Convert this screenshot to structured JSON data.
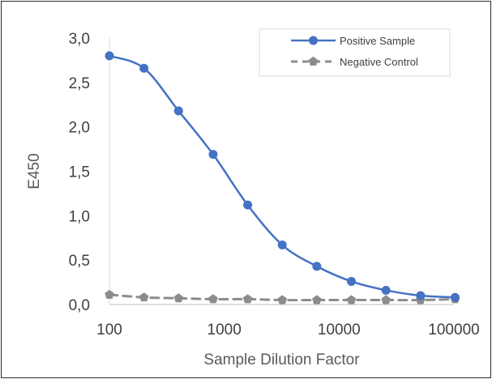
{
  "chart_data": {
    "type": "line",
    "title": "",
    "xlabel": "Sample Dilution Factor",
    "ylabel": "E450",
    "x_scale": "log",
    "xlim": [
      100,
      100000
    ],
    "ylim": [
      0,
      3.0
    ],
    "x_ticks": [
      100,
      1000,
      10000,
      100000
    ],
    "x_tick_labels": [
      "100",
      "1000",
      "10000",
      "100000"
    ],
    "y_ticks": [
      0,
      0.5,
      1.0,
      1.5,
      2.0,
      2.5,
      3.0
    ],
    "y_tick_labels": [
      "0,0",
      "0,5",
      "1,0",
      "1,5",
      "2,0",
      "2,5",
      "3,0"
    ],
    "grid": false,
    "legend_position": "top-right",
    "x": [
      100,
      200,
      400,
      800,
      1600,
      3200,
      6400,
      12800,
      25600,
      51200,
      102400
    ],
    "series": [
      {
        "name": "Positive Sample",
        "color": "#4472c4",
        "line_style": "solid",
        "marker": "circle",
        "values": [
          2.8,
          2.66,
          2.18,
          1.69,
          1.12,
          0.67,
          0.43,
          0.26,
          0.16,
          0.1,
          0.08
        ]
      },
      {
        "name": "Negative Control",
        "color": "#8c8c8c",
        "line_style": "dashed",
        "marker": "pentagon",
        "values": [
          0.11,
          0.08,
          0.07,
          0.06,
          0.06,
          0.05,
          0.05,
          0.05,
          0.05,
          0.05,
          0.06
        ]
      }
    ]
  }
}
